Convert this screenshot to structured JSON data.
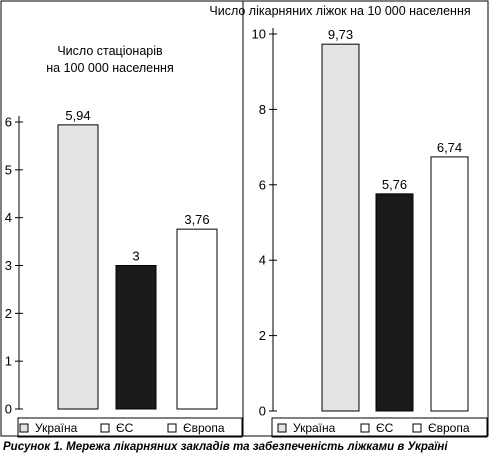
{
  "caption": "Рисунок 1. Мережа лікарняних закладів та забезпеченість ліжками в Україні",
  "colors": {
    "ukraine_fill": "#e4e4e4",
    "eu_fill": "#1a1a1a",
    "europe_fill": "#ffffff",
    "stroke": "#000000"
  },
  "chart_data": [
    {
      "type": "bar",
      "title": "Число стаціонарів\nна 100 000 населення",
      "categories": [
        "Україна",
        "ЄС",
        "Європа"
      ],
      "values": [
        5.94,
        3,
        3.76
      ],
      "value_labels": [
        "5,94",
        "3",
        "3,76"
      ],
      "ylim": [
        0,
        6
      ],
      "yticks": [
        "0",
        "1",
        "2",
        "3",
        "4",
        "5",
        "6"
      ],
      "legend": [
        "Україна",
        "ЄС",
        "Європа"
      ],
      "legend_position": "bottom"
    },
    {
      "type": "bar",
      "title": "Число лікарняних ліжок на 10 000 населення",
      "categories": [
        "Україна",
        "ЄС",
        "Європа"
      ],
      "values": [
        9.73,
        5.76,
        6.74
      ],
      "value_labels": [
        "9,73",
        "5,76",
        "6,74"
      ],
      "ylim": [
        0,
        10
      ],
      "yticks": [
        "0",
        "2",
        "4",
        "6",
        "8",
        "10"
      ],
      "legend": [
        "Україна",
        "ЄС",
        "Європа"
      ],
      "legend_position": "bottom"
    }
  ]
}
